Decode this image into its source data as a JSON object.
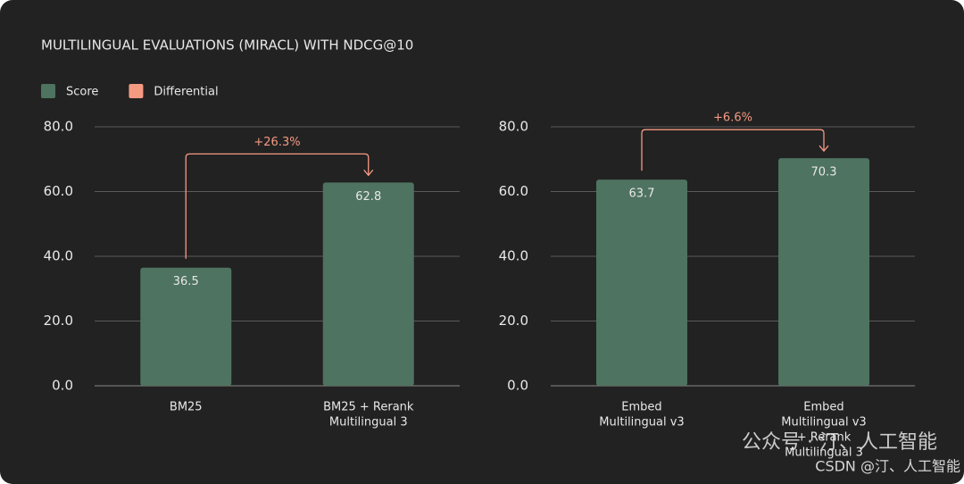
{
  "title": "MULTILINGUAL EVALUATIONS (MIRACL) WITH NDCG@10",
  "legend": [
    {
      "name": "Score",
      "color": "#4e7360"
    },
    {
      "name": "Differential",
      "color": "#f59a82"
    }
  ],
  "chart_data": [
    {
      "type": "bar",
      "categories": [
        [
          "BM25"
        ],
        [
          "BM25 + Rerank",
          "Multilingual 3"
        ]
      ],
      "values": [
        36.5,
        62.8
      ],
      "color": "#4e7360",
      "ylim": [
        0,
        80
      ],
      "yticks": [
        {
          "value": 0,
          "label": "0.0"
        },
        {
          "value": 20,
          "label": "20.0"
        },
        {
          "value": 40,
          "label": "40.0"
        },
        {
          "value": 60,
          "label": "60.0"
        },
        {
          "value": 80,
          "label": "80.0"
        }
      ],
      "grid": true,
      "annotation": "+26.3%",
      "annotation_color": "#f59a82"
    },
    {
      "type": "bar",
      "categories": [
        [
          "Embed",
          "Multilingual v3"
        ],
        [
          "Embed",
          "Multilingual v3",
          "+ Rerank",
          "Multilingual 3"
        ]
      ],
      "values": [
        63.7,
        70.3
      ],
      "color": "#4e7360",
      "ylim": [
        0,
        80
      ],
      "yticks": [
        {
          "value": 0,
          "label": "0.0"
        },
        {
          "value": 20,
          "label": "20.0"
        },
        {
          "value": 40,
          "label": "40.0"
        },
        {
          "value": 60,
          "label": "60.0"
        },
        {
          "value": 80,
          "label": "80.0"
        }
      ],
      "grid": true,
      "annotation": "+6.6%",
      "annotation_color": "#f59a82"
    }
  ],
  "watermark": [
    "公众号 · 汀、人工智能",
    "CSDN @汀、人工智能"
  ]
}
